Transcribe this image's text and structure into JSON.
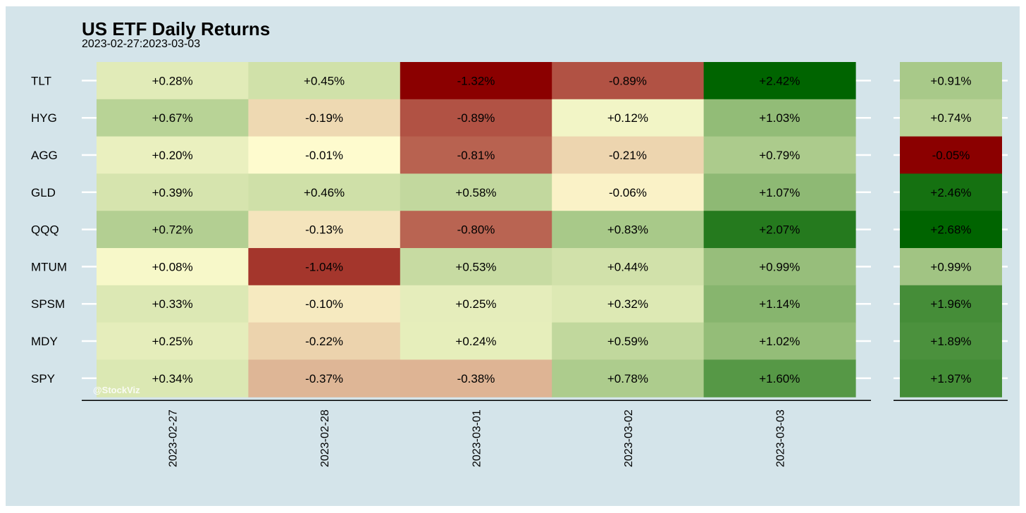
{
  "chart_data": {
    "type": "heatmap",
    "title": "US ETF Daily Returns",
    "subtitle": "2023-02-27:2023-03-03",
    "watermark": "@StockViz",
    "columns": [
      "2023-02-27",
      "2023-02-28",
      "2023-03-01",
      "2023-03-02",
      "2023-03-03"
    ],
    "rows": [
      "TLT",
      "HYG",
      "AGG",
      "GLD",
      "QQQ",
      "MTUM",
      "SPSM",
      "MDY",
      "SPY"
    ],
    "values": [
      [
        0.28,
        0.45,
        -1.32,
        -0.89,
        2.42
      ],
      [
        0.67,
        -0.19,
        -0.89,
        0.12,
        1.03
      ],
      [
        0.2,
        -0.01,
        -0.81,
        -0.21,
        0.79
      ],
      [
        0.39,
        0.46,
        0.58,
        -0.06,
        1.07
      ],
      [
        0.72,
        -0.13,
        -0.8,
        0.83,
        2.07
      ],
      [
        0.08,
        -1.04,
        0.53,
        0.44,
        0.99
      ],
      [
        0.33,
        -0.1,
        0.25,
        0.32,
        1.14
      ],
      [
        0.25,
        -0.22,
        0.24,
        0.59,
        1.02
      ],
      [
        0.34,
        -0.37,
        -0.38,
        0.78,
        1.6
      ]
    ],
    "totals": [
      0.91,
      0.74,
      -0.05,
      2.46,
      2.68,
      0.99,
      1.96,
      1.89,
      1.97
    ],
    "color_scale": {
      "negative": "#8b0000",
      "mid": "#fffdd0",
      "positive": "#006400"
    }
  }
}
